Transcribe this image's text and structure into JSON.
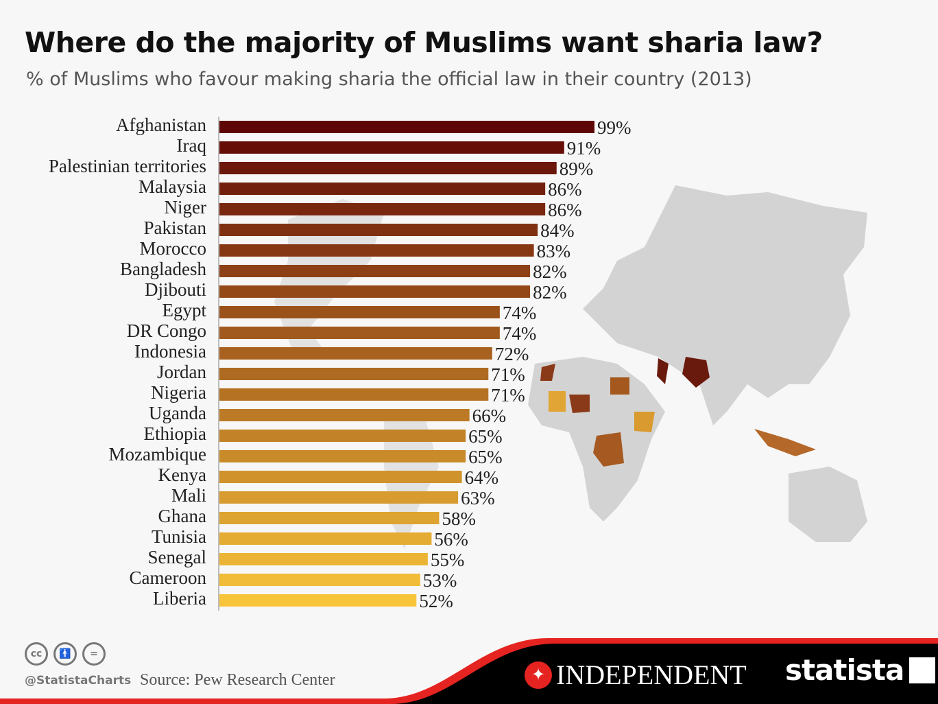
{
  "header": {
    "title": "Where do the majority of Muslims want sharia law?",
    "subtitle": "% of Muslims who favour making sharia the official law in their country (2013)"
  },
  "chart_data": {
    "type": "bar",
    "orientation": "horizontal",
    "title": "Where do the majority of Muslims want sharia law?",
    "subtitle": "% of Muslims who favour making sharia the official law in their country (2013)",
    "categories": [
      "Afghanistan",
      "Iraq",
      "Palestinian territories",
      "Malaysia",
      "Niger",
      "Pakistan",
      "Morocco",
      "Bangladesh",
      "Djibouti",
      "Egypt",
      "DR Congo",
      "Indonesia",
      "Jordan",
      "Nigeria",
      "Uganda",
      "Ethiopia",
      "Mozambique",
      "Kenya",
      "Mali",
      "Ghana",
      "Tunisia",
      "Senegal",
      "Cameroon",
      "Liberia"
    ],
    "values": [
      99,
      91,
      89,
      86,
      86,
      84,
      83,
      82,
      82,
      74,
      74,
      72,
      71,
      71,
      66,
      65,
      65,
      64,
      63,
      58,
      56,
      55,
      53,
      52
    ],
    "value_labels": [
      "99%",
      "91%",
      "89%",
      "86%",
      "86%",
      "84%",
      "83%",
      "82%",
      "82%",
      "74%",
      "74%",
      "72%",
      "71%",
      "71%",
      "66%",
      "65%",
      "65%",
      "64%",
      "63%",
      "58%",
      "56%",
      "55%",
      "53%",
      "52%"
    ],
    "xlim": [
      0,
      100
    ],
    "grid": false,
    "color_high": "#5e0606",
    "color_low": "#f8c53a"
  },
  "footer": {
    "handle": "@StatistaCharts",
    "source": "Source: Pew Research Center",
    "license_icons": [
      "cc",
      "by",
      "nd"
    ],
    "license_text": [
      "cc",
      "",
      "="
    ],
    "partner": "INDEPENDENT",
    "brand": "statista"
  },
  "colors": {
    "footer_black": "#000000",
    "footer_red": "#e52421",
    "map_grey": "#cfcfcf"
  }
}
